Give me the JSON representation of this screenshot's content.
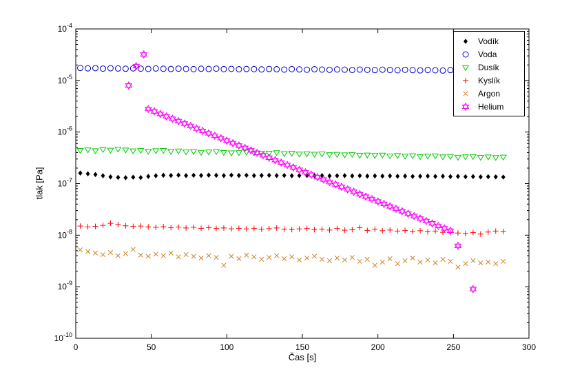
{
  "figure": {
    "background": "#ffffff",
    "axes_box_color": "#000000"
  },
  "chart_data": {
    "type": "scatter",
    "title": "",
    "xlabel": "Čas [s]",
    "ylabel": "tlak [Pa]",
    "xlim": [
      0,
      300
    ],
    "ylim_exp": [
      -10,
      -4
    ],
    "xticks": [
      0,
      50,
      100,
      150,
      200,
      250,
      300
    ],
    "yticks_exponents": [
      -10,
      -9,
      -8,
      -7,
      -6,
      -5,
      -4
    ],
    "grid": false,
    "legend_position": "top-right",
    "x": [
      3,
      8,
      13,
      18,
      23,
      28,
      33,
      38,
      43,
      48,
      53,
      58,
      63,
      68,
      73,
      78,
      83,
      88,
      93,
      98,
      103,
      108,
      113,
      118,
      123,
      128,
      133,
      138,
      143,
      148,
      153,
      158,
      163,
      168,
      173,
      178,
      183,
      188,
      193,
      198,
      203,
      208,
      213,
      218,
      223,
      228,
      233,
      238,
      243,
      248,
      253,
      258,
      263,
      268,
      273,
      278,
      283
    ],
    "series": [
      {
        "name": "vodik",
        "label": "Vodík",
        "marker": "diamond",
        "color": "#000000",
        "y": [
          1.6e-07,
          1.55e-07,
          1.5e-07,
          1.42e-07,
          1.35e-07,
          1.32e-07,
          1.3e-07,
          1.33e-07,
          1.31e-07,
          1.38e-07,
          1.42e-07,
          1.45e-07,
          1.44e-07,
          1.46e-07,
          1.43e-07,
          1.45e-07,
          1.44e-07,
          1.46e-07,
          1.45e-07,
          1.43e-07,
          1.46e-07,
          1.44e-07,
          1.45e-07,
          1.43e-07,
          1.44e-07,
          1.45e-07,
          1.43e-07,
          1.44e-07,
          1.42e-07,
          1.43e-07,
          1.44e-07,
          1.42e-07,
          1.43e-07,
          1.41e-07,
          1.42e-07,
          1.43e-07,
          1.41e-07,
          1.42e-07,
          1.4e-07,
          1.41e-07,
          1.4e-07,
          1.41e-07,
          1.39e-07,
          1.4e-07,
          1.38e-07,
          1.39e-07,
          1.4e-07,
          1.38e-07,
          1.39e-07,
          1.37e-07,
          1.38e-07,
          1.36e-07,
          1.37e-07,
          1.35e-07,
          1.36e-07,
          1.35e-07,
          1.34e-07
        ]
      },
      {
        "name": "voda",
        "label": "Voda",
        "marker": "circle",
        "color": "#0000cc",
        "y": [
          1.75e-05,
          1.72e-05,
          1.74e-05,
          1.7e-05,
          1.73e-05,
          1.71e-05,
          1.69e-05,
          1.72e-05,
          1.7e-05,
          1.68e-05,
          1.71e-05,
          1.69e-05,
          1.67e-05,
          1.7e-05,
          1.68e-05,
          1.66e-05,
          1.69e-05,
          1.67e-05,
          1.7e-05,
          1.66e-05,
          1.68e-05,
          1.65e-05,
          1.67e-05,
          1.66e-05,
          1.64e-05,
          1.67e-05,
          1.65e-05,
          1.63e-05,
          1.66e-05,
          1.64e-05,
          1.62e-05,
          1.65e-05,
          1.63e-05,
          1.61e-05,
          1.64e-05,
          1.62e-05,
          1.6e-05,
          1.63e-05,
          1.61e-05,
          1.59e-05,
          1.62e-05,
          1.6e-05,
          1.58e-05,
          1.61e-05,
          1.59e-05,
          1.57e-05,
          1.6e-05,
          1.58e-05,
          1.56e-05,
          1.59e-05,
          1.57e-05,
          1.6e-05,
          1.58e-05,
          1.56e-05,
          1.59e-05,
          1.57e-05,
          1.58e-05
        ]
      },
      {
        "name": "dusik",
        "label": "Dusík",
        "marker": "triangle-down",
        "color": "#00cc00",
        "y": [
          4.4e-07,
          4.52e-07,
          4.35e-07,
          4.6e-07,
          4.45e-07,
          4.68e-07,
          4.5e-07,
          4.32e-07,
          4.42e-07,
          4.25e-07,
          4.35e-07,
          4.4e-07,
          4.22e-07,
          4.3e-07,
          4.12e-07,
          4.2e-07,
          4.05e-07,
          4.12e-07,
          4.18e-07,
          4.02e-07,
          3.95e-07,
          4e-07,
          4.08e-07,
          3.92e-07,
          3.85e-07,
          3.9e-07,
          3.98e-07,
          3.82e-07,
          3.88e-07,
          3.75e-07,
          3.8e-07,
          3.72e-07,
          3.78e-07,
          3.65e-07,
          3.7e-07,
          3.62e-07,
          3.68e-07,
          3.55e-07,
          3.6e-07,
          3.52e-07,
          3.58e-07,
          3.45e-07,
          3.52e-07,
          3.42e-07,
          3.48e-07,
          3.35e-07,
          3.42e-07,
          3.46e-07,
          3.32e-07,
          3.38e-07,
          3.25e-07,
          3.32e-07,
          3.36e-07,
          3.24e-07,
          3.3e-07,
          3.22e-07,
          3.28e-07
        ]
      },
      {
        "name": "kyslik",
        "label": "Kyslík",
        "marker": "plus",
        "color": "#ff0000",
        "y": [
          1.5e-08,
          1.45e-08,
          1.48e-08,
          1.55e-08,
          1.7e-08,
          1.6e-08,
          1.52e-08,
          1.48e-08,
          1.5e-08,
          1.45e-08,
          1.42e-08,
          1.46e-08,
          1.4e-08,
          1.44e-08,
          1.38e-08,
          1.42e-08,
          1.36e-08,
          1.4e-08,
          1.35e-08,
          1.38e-08,
          1.33e-08,
          1.36e-08,
          1.32e-08,
          1.35e-08,
          1.3e-08,
          1.34e-08,
          1.38e-08,
          1.3e-08,
          1.28e-08,
          1.32e-08,
          1.35e-08,
          1.28e-08,
          1.3e-08,
          1.26e-08,
          1.35e-08,
          1.25e-08,
          1.28e-08,
          1.4e-08,
          1.24e-08,
          1.3e-08,
          1.22e-08,
          1.26e-08,
          1.2e-08,
          1.24e-08,
          1.18e-08,
          1.22e-08,
          1.16e-08,
          1.2e-08,
          1.14e-08,
          1.12e-08,
          1.1e-08,
          1.08e-08,
          1.12e-08,
          1.05e-08,
          1.15e-08,
          1.2e-08,
          1.18e-08
        ]
      },
      {
        "name": "argon",
        "label": "Argon",
        "marker": "x",
        "color": "#cc8429",
        "y": [
          5.2e-09,
          4.8e-09,
          4.5e-09,
          4.2e-09,
          4.6e-09,
          4e-09,
          4.4e-09,
          5.3e-09,
          4.1e-09,
          3.9e-09,
          4.3e-09,
          4e-09,
          4.5e-09,
          3.8e-09,
          4.2e-09,
          3.9e-09,
          3.6e-09,
          4e-09,
          3.7e-09,
          2.6e-09,
          3.9e-09,
          3.5e-09,
          4.1e-09,
          3.8e-09,
          3.4e-09,
          3.7e-09,
          4e-09,
          3.5e-09,
          3.8e-09,
          3.3e-09,
          3.6e-09,
          3.9e-09,
          3.4e-09,
          3.2e-09,
          3.6e-09,
          3.3e-09,
          3.7e-09,
          3.1e-09,
          3.4e-09,
          2.6e-09,
          3e-09,
          3.5e-09,
          2.8e-09,
          3.2e-09,
          3.6e-09,
          3e-09,
          3.3e-09,
          2.9e-09,
          3.4e-09,
          3.1e-09,
          2.4e-09,
          2.8e-09,
          3.2e-09,
          2.9e-09,
          3e-09,
          2.8e-09,
          3.1e-09
        ]
      },
      {
        "name": "helium",
        "label": "Helium",
        "marker": "hexagram",
        "color": "#ff00ff",
        "x": [
          35,
          40,
          45,
          48,
          52,
          56,
          60,
          64,
          68,
          72,
          76,
          80,
          84,
          88,
          92,
          96,
          100,
          104,
          108,
          112,
          116,
          120,
          124,
          128,
          132,
          136,
          140,
          144,
          148,
          152,
          156,
          160,
          164,
          168,
          172,
          176,
          180,
          184,
          188,
          192,
          196,
          200,
          204,
          208,
          212,
          216,
          220,
          224,
          228,
          232,
          236,
          240,
          244,
          248,
          253,
          263
        ],
        "y": [
          8e-06,
          1.9e-05,
          3.2e-05,
          2.8e-06,
          2.51e-06,
          2.25e-06,
          2.02e-06,
          1.81e-06,
          1.63e-06,
          1.46e-06,
          1.31e-06,
          1.17e-06,
          1.05e-06,
          9.44e-07,
          8.47e-07,
          7.6e-07,
          6.81e-07,
          6.11e-07,
          5.48e-07,
          4.92e-07,
          4.41e-07,
          3.96e-07,
          3.55e-07,
          3.18e-07,
          2.85e-07,
          2.56e-07,
          2.3e-07,
          2.06e-07,
          1.85e-07,
          1.66e-07,
          1.49e-07,
          1.33e-07,
          1.2e-07,
          1.07e-07,
          9.63e-08,
          8.64e-08,
          7.75e-08,
          6.95e-08,
          6.23e-08,
          5.59e-08,
          5.01e-08,
          4.5e-08,
          4.03e-08,
          3.62e-08,
          3.25e-08,
          2.91e-08,
          2.61e-08,
          2.34e-08,
          2.1e-08,
          1.88e-08,
          1.69e-08,
          1.51e-08,
          1.36e-08,
          1.22e-08,
          6.2e-09,
          9e-10
        ]
      }
    ]
  }
}
